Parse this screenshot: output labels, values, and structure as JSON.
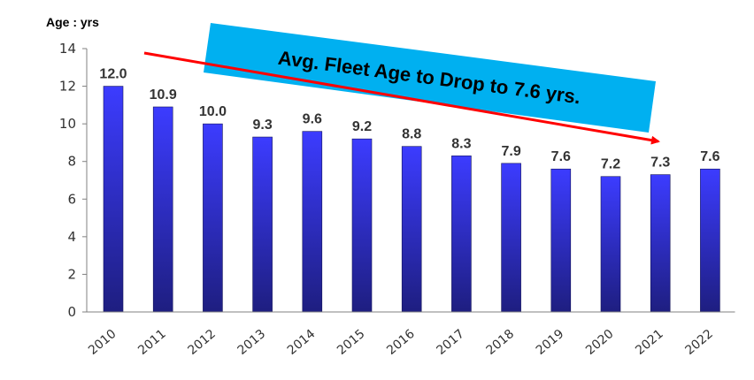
{
  "chart_data": {
    "type": "bar",
    "ylabel": "Age : yrs",
    "categories": [
      "2010",
      "2011",
      "2012",
      "2013",
      "2014",
      "2015",
      "2016",
      "2017",
      "2018",
      "2019",
      "2020",
      "2021",
      "2022"
    ],
    "values": [
      12.0,
      10.9,
      10.0,
      9.3,
      9.6,
      9.2,
      8.8,
      8.3,
      7.9,
      7.6,
      7.2,
      7.3,
      7.6
    ],
    "data_labels": [
      "12.0",
      "10.9",
      "10.0",
      "9.3",
      "9.6",
      "9.2",
      "8.8",
      "8.3",
      "7.9",
      "7.6",
      "7.2",
      "7.3",
      "7.6"
    ],
    "ylim": [
      0,
      14
    ],
    "yticks": [
      0,
      2,
      4,
      6,
      8,
      10,
      12,
      14
    ],
    "grid": false,
    "annotation": {
      "text": "Avg. Fleet Age to Drop to 7.6 yrs.",
      "box_color": "#00b0f0",
      "arrow_color": "#ff0000"
    },
    "bar_color_top": "#3c3cff",
    "bar_color_bottom": "#1e1e80"
  }
}
